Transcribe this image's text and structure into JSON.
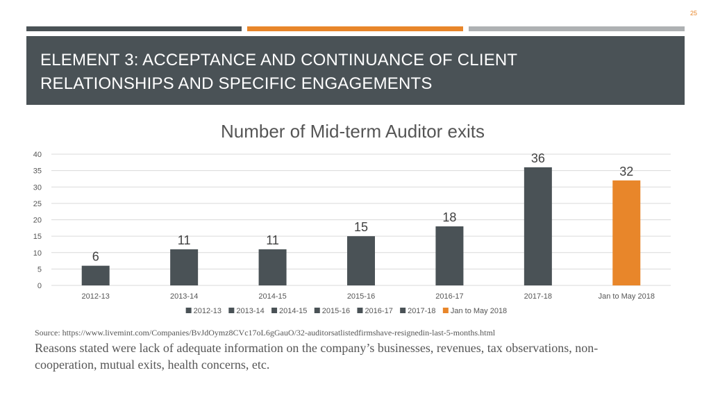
{
  "slide": {
    "page_number": "25",
    "title": "ELEMENT 3: ACCEPTANCE AND CONTINUANCE OF CLIENT RELATIONSHIPS AND SPECIFIC ENGAGEMENTS",
    "source": "Source: https://www.livemint.com/Companies/BvJdOymz8CVc17oL6gGauO/32-auditorsatlistedfirmshave-resignedin-last-5-months.html",
    "reasons": "Reasons stated were lack of adequate information on the company’s businesses, revenues, tax observations, non-cooperation, mutual exits, health concerns, etc."
  },
  "colors": {
    "dark": "#4a5256",
    "orange": "#e8862a",
    "gray": "#aeb1b3"
  },
  "chart_data": {
    "type": "bar",
    "title": "Number of Mid-term Auditor exits",
    "categories": [
      "2012-13",
      "2013-14",
      "2014-15",
      "2015-16",
      "2016-17",
      "2017-18",
      "Jan to May 2018"
    ],
    "values": [
      6,
      11,
      11,
      15,
      18,
      36,
      32
    ],
    "bar_colors": [
      "#4a5256",
      "#4a5256",
      "#4a5256",
      "#4a5256",
      "#4a5256",
      "#4a5256",
      "#e8862a"
    ],
    "data_labels": [
      "6",
      "11",
      "11",
      "15",
      "18",
      "36",
      "32"
    ],
    "ylim": [
      0,
      40
    ],
    "yticks": [
      0,
      5,
      10,
      15,
      20,
      25,
      30,
      35,
      40
    ],
    "ytick_labels": [
      "0",
      "5",
      "10",
      "15",
      "20",
      "25",
      "30",
      "35",
      "40"
    ],
    "xlabel": "",
    "ylabel": "",
    "grid": true,
    "legend": {
      "position": "bottom",
      "entries": [
        "2012-13",
        "2013-14",
        "2014-15",
        "2015-16",
        "2016-17",
        "2017-18",
        "Jan to May 2018"
      ]
    }
  }
}
